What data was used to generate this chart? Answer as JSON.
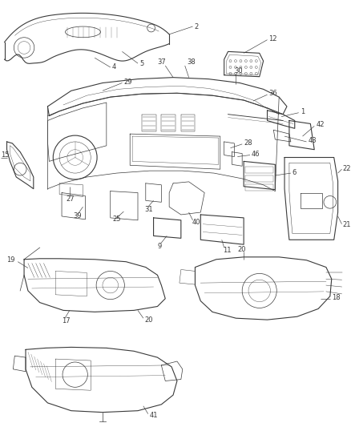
{
  "background_color": "#ffffff",
  "line_color": "#3a3a3a",
  "label_color": "#222222",
  "figsize": [
    4.38,
    5.33
  ],
  "dpi": 100,
  "lw_main": 0.8,
  "lw_thin": 0.5,
  "lw_label": 0.4,
  "font_size": 6.0
}
